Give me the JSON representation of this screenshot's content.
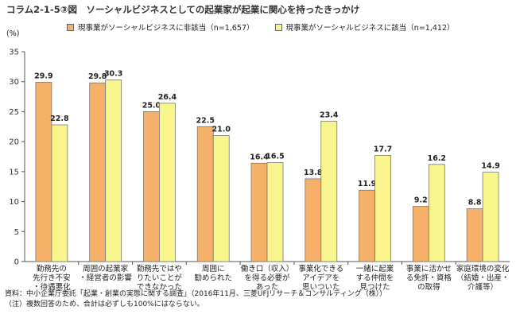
{
  "title": "コラム2-1-5③図　ソーシャルビジネスとしての起業家が起業に関心を持ったきっかけ",
  "unit": "(%)",
  "notes": [
    "資料：中小企業庁委託「起業・創業の実態に関する調査」（2016年11月、三菱UFJリサーチ＆コンサルティング（株））",
    "（注）複数回答のため、合計は必ずしも100%にはならない。"
  ],
  "colors": {
    "series1": "#F5B06A",
    "series2": "#F8F58C",
    "bar_border": "#777777",
    "axis": "#555555"
  },
  "chart_data": {
    "type": "bar",
    "title": "ソーシャルビジネスとしての起業家が起業に関心を持ったきっかけ",
    "ylabel": "(%)",
    "ylim": [
      0,
      35
    ],
    "yticks": [
      0,
      5,
      10,
      15,
      20,
      25,
      30,
      35
    ],
    "grid": false,
    "legend_position": "top",
    "categories": [
      "勤務先の\n先行き不安\n・待遇悪化",
      "周囲の起業家\n・経営者の影響",
      "勤務先ではや\nりたいことが\nできなかった",
      "周囲に\n勧められた",
      "働き口（収入）\nを得る必要が\nあった",
      "事業化できる\nアイデアを\n思いついた",
      "一緒に起業\nする仲間を\n見つけた",
      "事業に活かせ\nる免許・資格\nの取得",
      "家庭環境の変化\n（結婚・出産・\n介護等）"
    ],
    "series": [
      {
        "name": "現事業がソーシャルビジネスに非該当（n=1,657）",
        "values": [
          29.9,
          29.8,
          25.0,
          22.5,
          16.4,
          13.8,
          11.9,
          9.2,
          8.8
        ]
      },
      {
        "name": "現事業がソーシャルビジネスに該当（n=1,412）",
        "values": [
          22.8,
          30.3,
          26.4,
          21.0,
          16.5,
          23.4,
          17.7,
          16.2,
          14.9
        ]
      }
    ]
  }
}
